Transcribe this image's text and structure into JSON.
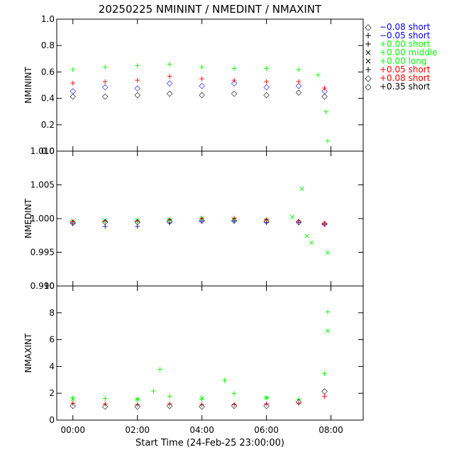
{
  "title": "20250225 NMININT / NMEDINT / NMAXINT",
  "xlabel": "Start Time (24-Feb-25 23:00:00)",
  "legend": [
    {
      "symbol": "◇",
      "label": "−0.08 short",
      "color": "#0000ff"
    },
    {
      "symbol": "+",
      "label": "−0.05 short",
      "color": "#0000ff"
    },
    {
      "symbol": "+",
      "label": "+0.00 short",
      "color": "#00ff00"
    },
    {
      "symbol": "×",
      "label": "+0.00 middle",
      "color": "#00ff00"
    },
    {
      "symbol": "×",
      "label": "+0.00 long",
      "color": "#00ff00"
    },
    {
      "symbol": "+",
      "label": "+0.05 short",
      "color": "#ff0000"
    },
    {
      "symbol": "◇",
      "label": "+0.08 short",
      "color": "#ff0000"
    },
    {
      "symbol": "◇",
      "label": "+0.35 short",
      "color": "#000000"
    }
  ],
  "chart_data": [
    {
      "type": "scatter",
      "ylabel": "NMININT",
      "ylim": [
        0.0,
        1.0
      ],
      "yticks": [
        "0.0",
        "0.2",
        "0.4",
        "0.6",
        "0.8",
        "1.0"
      ],
      "xlim": [
        -0.5,
        9.0
      ],
      "xticks": [
        "00:00",
        "02:00",
        "04:00",
        "06:00",
        "08:00"
      ],
      "series": [
        {
          "name": "−0.08 short",
          "x": [
            0.0,
            1.0,
            2.0,
            3.0,
            4.0,
            5.0,
            6.0,
            7.0,
            7.8
          ],
          "y": [
            0.46,
            0.49,
            0.48,
            0.52,
            0.5,
            0.52,
            0.49,
            0.5,
            0.46
          ]
        },
        {
          "name": "+0.00 short",
          "x": [
            0.0,
            1.0,
            2.0,
            3.0,
            4.0,
            5.0,
            6.0,
            7.0,
            7.6,
            7.85,
            7.9
          ],
          "y": [
            0.62,
            0.64,
            0.65,
            0.66,
            0.64,
            0.63,
            0.63,
            0.62,
            0.58,
            0.3,
            0.08
          ]
        },
        {
          "name": "+0.05 short",
          "x": [
            0.0,
            1.0,
            2.0,
            3.0,
            4.0,
            5.0,
            6.0,
            7.0,
            7.8
          ],
          "y": [
            0.52,
            0.53,
            0.54,
            0.57,
            0.55,
            0.54,
            0.53,
            0.53,
            0.48
          ]
        },
        {
          "name": "+0.35 short",
          "x": [
            0.0,
            1.0,
            2.0,
            3.0,
            4.0,
            5.0,
            6.0,
            7.0,
            7.8
          ],
          "y": [
            0.42,
            0.42,
            0.43,
            0.44,
            0.43,
            0.44,
            0.43,
            0.45,
            0.42
          ]
        }
      ]
    },
    {
      "type": "scatter",
      "ylabel": "NMEDINT",
      "ylim": [
        0.99,
        1.01
      ],
      "yticks": [
        "0.990",
        "0.995",
        "1.000",
        "1.005",
        "1.010"
      ],
      "xlim": [
        -0.5,
        9.0
      ],
      "xticks": [
        "00:00",
        "02:00",
        "04:00",
        "06:00",
        "08:00"
      ],
      "series": [
        {
          "name": "−0.05 short",
          "x": [
            0.0,
            1.0,
            2.0,
            3.0,
            4.0,
            5.0,
            6.0,
            7.0,
            7.8
          ],
          "y": [
            0.9993,
            0.9989,
            0.9989,
            0.9994,
            0.9997,
            0.9997,
            0.9995,
            0.9995,
            0.9992
          ]
        },
        {
          "name": "+0.00 middle",
          "x": [
            0.0,
            1.0,
            2.0,
            3.0,
            4.0,
            5.0,
            6.0,
            6.8,
            7.1,
            7.25,
            7.4,
            7.9
          ],
          "y": [
            0.9997,
            0.9998,
            0.9998,
            0.9999,
            1.0001,
            1.0,
            0.9999,
            1.0003,
            1.0045,
            0.9975,
            0.9965,
            0.995
          ]
        },
        {
          "name": "+0.05 short",
          "x": [
            0.0,
            1.0,
            2.0,
            3.0,
            4.0,
            5.0,
            6.0,
            7.0,
            7.8
          ],
          "y": [
            0.9996,
            0.9997,
            0.9997,
            0.9999,
            1.0001,
            1.0001,
            0.9999,
            0.9997,
            0.9993
          ]
        },
        {
          "name": "+0.35 short",
          "x": [
            0.0,
            1.0,
            2.0,
            3.0,
            4.0,
            5.0,
            6.0,
            7.0,
            7.8
          ],
          "y": [
            0.9995,
            0.9996,
            0.9996,
            0.9997,
            0.9998,
            0.9998,
            0.9997,
            0.9996,
            0.9993
          ]
        }
      ]
    },
    {
      "type": "scatter",
      "ylabel": "NMAXINT",
      "ylim": [
        0,
        10
      ],
      "yticks": [
        "0",
        "2",
        "4",
        "6",
        "8",
        "10"
      ],
      "xlim": [
        -0.5,
        9.0
      ],
      "xticks": [
        "00:00",
        "02:00",
        "04:00",
        "06:00",
        "08:00"
      ],
      "series": [
        {
          "name": "+0.00 short",
          "x": [
            0.0,
            1.0,
            2.0,
            2.5,
            2.7,
            3.0,
            4.0,
            4.7,
            5.0,
            6.0,
            7.0,
            7.8,
            7.9
          ],
          "y": [
            1.7,
            1.65,
            1.6,
            2.2,
            3.8,
            1.8,
            1.6,
            3.0,
            2.0,
            1.7,
            1.6,
            3.5,
            8.1
          ]
        },
        {
          "name": "+0.00 long",
          "x": [
            0.0,
            2.0,
            4.0,
            6.0,
            7.9
          ],
          "y": [
            1.6,
            1.6,
            1.7,
            1.7,
            6.7
          ]
        },
        {
          "name": "+0.05 short",
          "x": [
            0.0,
            1.0,
            2.0,
            3.0,
            4.0,
            5.0,
            6.0,
            7.0,
            7.8
          ],
          "y": [
            1.3,
            1.25,
            1.2,
            1.25,
            1.2,
            1.2,
            1.25,
            1.3,
            1.8
          ]
        },
        {
          "name": "+0.35 short",
          "x": [
            0.0,
            1.0,
            2.0,
            3.0,
            4.0,
            5.0,
            6.0,
            7.0,
            7.8
          ],
          "y": [
            1.1,
            1.05,
            1.05,
            1.1,
            1.05,
            1.1,
            1.1,
            1.4,
            2.2
          ]
        }
      ]
    }
  ]
}
